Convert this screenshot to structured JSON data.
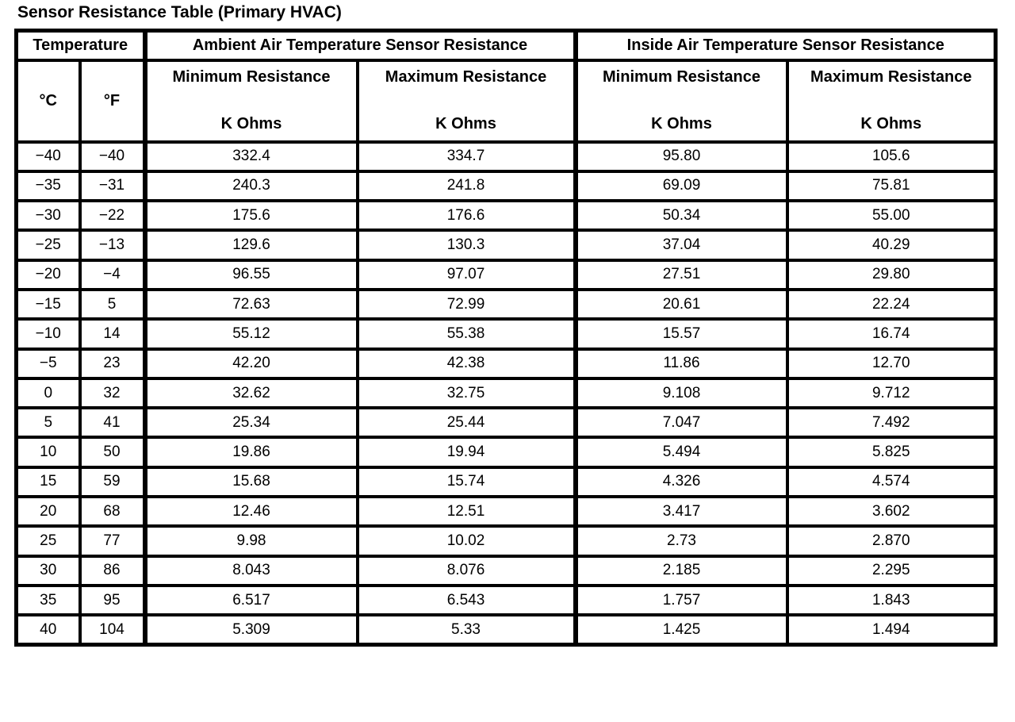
{
  "title": "Sensor Resistance Table (Primary HVAC)",
  "colors": {
    "background": "#ffffff",
    "border": "#000000",
    "text": "#000000"
  },
  "table": {
    "header": {
      "temperature_group": "Temperature",
      "ambient_group": "Ambient Air Temperature Sensor Resistance",
      "inside_group": "Inside Air Temperature Sensor Resistance",
      "celsius_label": "°C",
      "fahrenheit_label": "°F",
      "minimum_label": "Minimum Resistance",
      "maximum_label": "Maximum Resistance",
      "unit_label": "K Ohms"
    },
    "rows": [
      {
        "celsius": "−40",
        "fahrenheit": "−40",
        "ambient_min": "332.4",
        "ambient_max": "334.7",
        "inside_min": "95.80",
        "inside_max": "105.6"
      },
      {
        "celsius": "−35",
        "fahrenheit": "−31",
        "ambient_min": "240.3",
        "ambient_max": "241.8",
        "inside_min": "69.09",
        "inside_max": "75.81"
      },
      {
        "celsius": "−30",
        "fahrenheit": "−22",
        "ambient_min": "175.6",
        "ambient_max": "176.6",
        "inside_min": "50.34",
        "inside_max": "55.00"
      },
      {
        "celsius": "−25",
        "fahrenheit": "−13",
        "ambient_min": "129.6",
        "ambient_max": "130.3",
        "inside_min": "37.04",
        "inside_max": "40.29"
      },
      {
        "celsius": "−20",
        "fahrenheit": "−4",
        "ambient_min": "96.55",
        "ambient_max": "97.07",
        "inside_min": "27.51",
        "inside_max": "29.80"
      },
      {
        "celsius": "−15",
        "fahrenheit": "5",
        "ambient_min": "72.63",
        "ambient_max": "72.99",
        "inside_min": "20.61",
        "inside_max": "22.24"
      },
      {
        "celsius": "−10",
        "fahrenheit": "14",
        "ambient_min": "55.12",
        "ambient_max": "55.38",
        "inside_min": "15.57",
        "inside_max": "16.74"
      },
      {
        "celsius": "−5",
        "fahrenheit": "23",
        "ambient_min": "42.20",
        "ambient_max": "42.38",
        "inside_min": "11.86",
        "inside_max": "12.70"
      },
      {
        "celsius": "0",
        "fahrenheit": "32",
        "ambient_min": "32.62",
        "ambient_max": "32.75",
        "inside_min": "9.108",
        "inside_max": "9.712"
      },
      {
        "celsius": "5",
        "fahrenheit": "41",
        "ambient_min": "25.34",
        "ambient_max": "25.44",
        "inside_min": "7.047",
        "inside_max": "7.492"
      },
      {
        "celsius": "10",
        "fahrenheit": "50",
        "ambient_min": "19.86",
        "ambient_max": "19.94",
        "inside_min": "5.494",
        "inside_max": "5.825"
      },
      {
        "celsius": "15",
        "fahrenheit": "59",
        "ambient_min": "15.68",
        "ambient_max": "15.74",
        "inside_min": "4.326",
        "inside_max": "4.574"
      },
      {
        "celsius": "20",
        "fahrenheit": "68",
        "ambient_min": "12.46",
        "ambient_max": "12.51",
        "inside_min": "3.417",
        "inside_max": "3.602"
      },
      {
        "celsius": "25",
        "fahrenheit": "77",
        "ambient_min": "9.98",
        "ambient_max": "10.02",
        "inside_min": "2.73",
        "inside_max": "2.870"
      },
      {
        "celsius": "30",
        "fahrenheit": "86",
        "ambient_min": "8.043",
        "ambient_max": "8.076",
        "inside_min": "2.185",
        "inside_max": "2.295"
      },
      {
        "celsius": "35",
        "fahrenheit": "95",
        "ambient_min": "6.517",
        "ambient_max": "6.543",
        "inside_min": "1.757",
        "inside_max": "1.843"
      },
      {
        "celsius": "40",
        "fahrenheit": "104",
        "ambient_min": "5.309",
        "ambient_max": "5.33",
        "inside_min": "1.425",
        "inside_max": "1.494"
      }
    ]
  }
}
